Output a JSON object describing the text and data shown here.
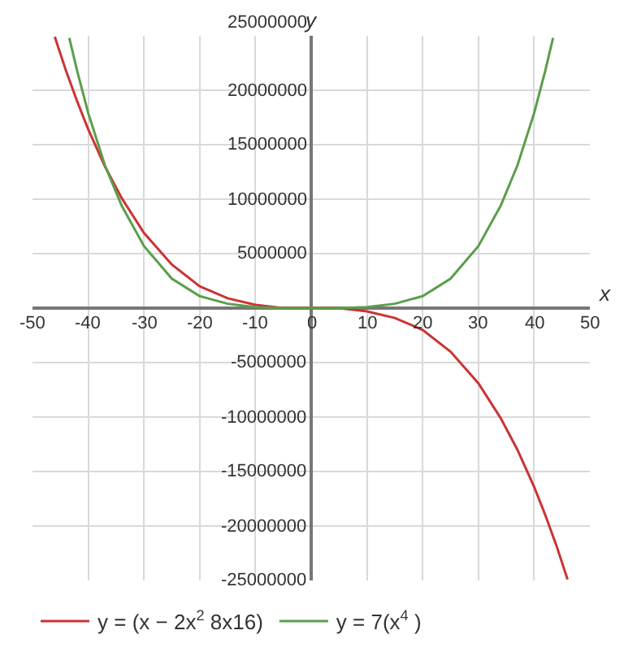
{
  "chart_data": {
    "type": "line",
    "xlabel": "x",
    "ylabel": "y",
    "xlim": [
      -50,
      50
    ],
    "ylim": [
      -25000000,
      25000000
    ],
    "xticks": [
      -50,
      -40,
      -30,
      -20,
      -10,
      0,
      10,
      20,
      30,
      40,
      50
    ],
    "yticks": [
      -25000000,
      -20000000,
      -15000000,
      -10000000,
      -5000000,
      5000000,
      10000000,
      15000000,
      20000000,
      25000000
    ],
    "grid": true,
    "legend": "bottom",
    "marker": "none",
    "line_style": "solid",
    "series": [
      {
        "name": "y = (x − 2x$^{2}$ 8x16)",
        "color": "#cc3333",
        "x": [
          -46,
          -44,
          -42,
          -40,
          -37,
          -34,
          -30,
          -25,
          -20,
          -15,
          -10,
          -5,
          0,
          5,
          10,
          15,
          20,
          25,
          30,
          34,
          37,
          40,
          42,
          44,
          46
        ],
        "values": [
          24900000,
          21800000,
          19000000,
          16400000,
          13000000,
          10100000,
          6900000,
          4000000,
          2000000,
          900000,
          300000,
          0,
          0,
          0,
          -300000,
          -900000,
          -2000000,
          -4000000,
          -6900000,
          -10100000,
          -13000000,
          -16400000,
          -19000000,
          -21800000,
          -24900000
        ]
      },
      {
        "name": "y = 7(x$^{4}$ )",
        "color": "#5a9e4b",
        "x": [
          -43.4,
          -42,
          -40,
          -37,
          -34,
          -30,
          -25,
          -20,
          -15,
          -10,
          -5,
          0,
          5,
          10,
          15,
          20,
          25,
          30,
          34,
          37,
          40,
          42,
          43.4
        ],
        "values": [
          24800000,
          21800000,
          17900000,
          13100000,
          9400000,
          5700000,
          2700000,
          1100000,
          400000,
          100000,
          0,
          0,
          0,
          100000,
          400000,
          1100000,
          2700000,
          5700000,
          9400000,
          13100000,
          17900000,
          21800000,
          24800000
        ]
      }
    ]
  }
}
